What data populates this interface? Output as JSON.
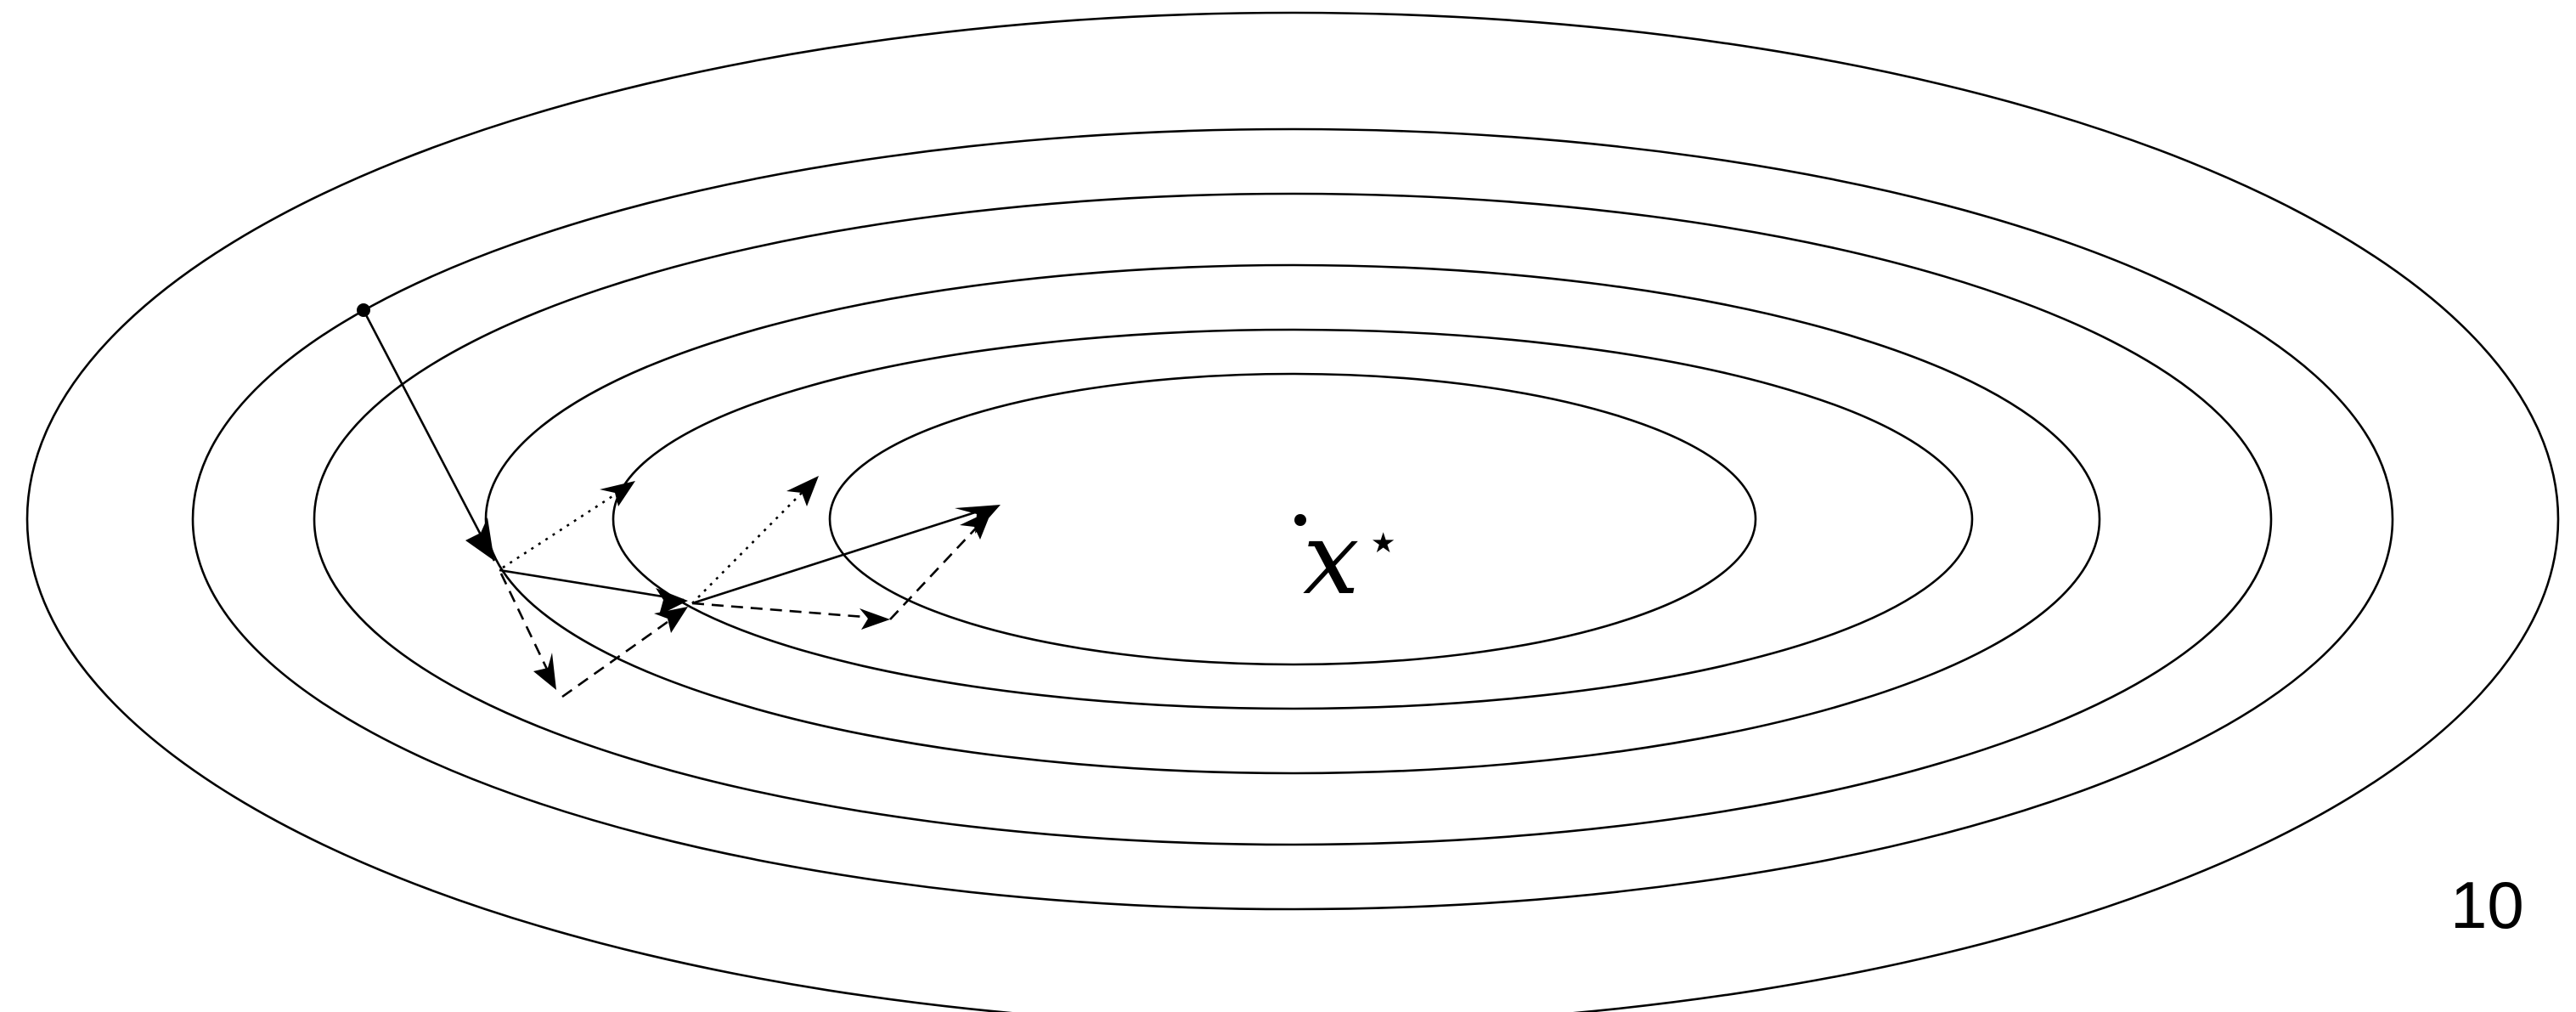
{
  "figure": {
    "optimum_label": "x",
    "optimum_superscript": "⋆",
    "page_number": "10",
    "stroke_color": "#000000",
    "background_color": "#ffffff",
    "contour_count": 6,
    "line_styles": [
      "solid",
      "dashed",
      "dotted"
    ]
  }
}
